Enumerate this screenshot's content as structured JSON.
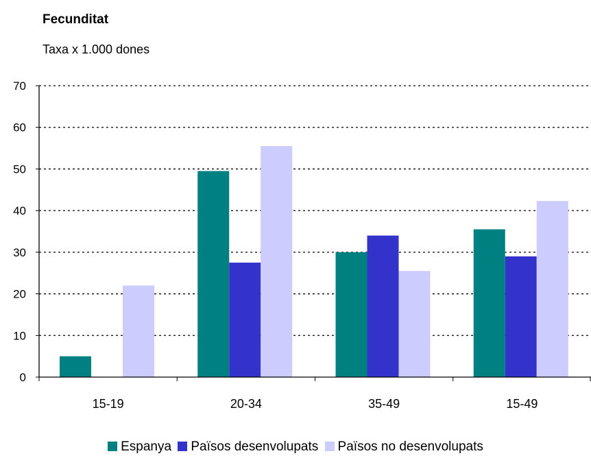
{
  "title": "Fecunditat",
  "subtitle": "Taxa x 1.000 dones",
  "chart_data": {
    "type": "bar",
    "categories": [
      "15-19",
      "20-34",
      "35-49",
      "15-49"
    ],
    "series": [
      {
        "name": "Espanya",
        "color": "#008080",
        "values": [
          5,
          49.5,
          30,
          35.5
        ]
      },
      {
        "name": "Països desenvolupats",
        "color": "#3333CC",
        "values": [
          null,
          27.5,
          34,
          29
        ]
      },
      {
        "name": "Països no desenvolupats",
        "color": "#CCCCFF",
        "values": [
          22,
          55.5,
          25.5,
          42.3
        ]
      }
    ],
    "ylim": [
      0,
      70
    ],
    "yticks": [
      0,
      10,
      20,
      30,
      40,
      50,
      60,
      70
    ],
    "grid": true,
    "legend_position": "bottom"
  }
}
